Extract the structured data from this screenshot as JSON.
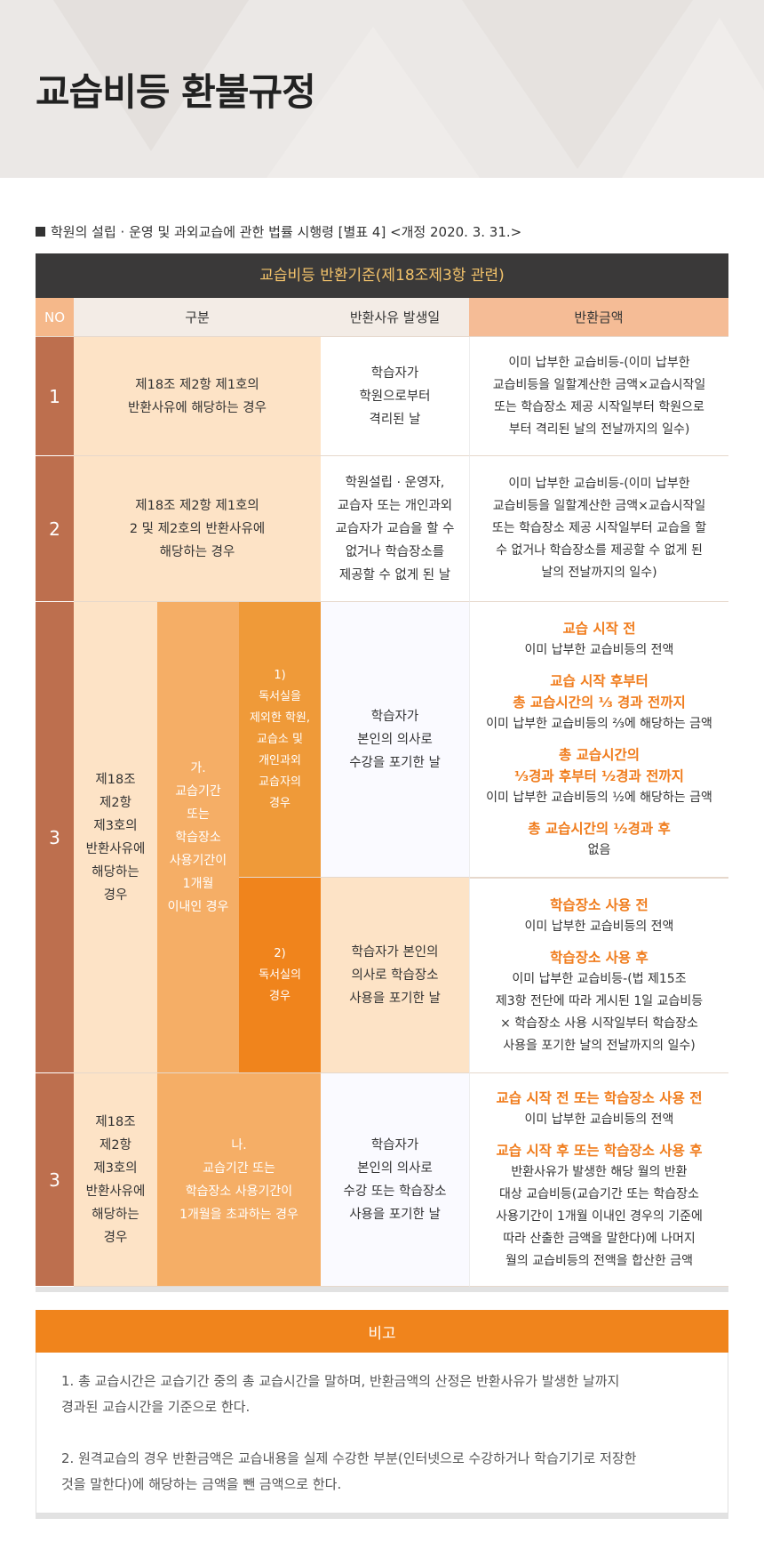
{
  "page_title": "교습비등 환불규정",
  "law_reference": "학원의 설립 · 운영 및 과외교습에 관한 법률 시행령 [별표 4] <개정 2020. 3. 31.>",
  "table": {
    "title": "교습비등 반환기준(제18조제3항 관련)",
    "headers": {
      "no": "NO",
      "category": "구분",
      "occurrence": "반환사유 발생일",
      "amount": "반환금액"
    },
    "rows": [
      {
        "no": "1",
        "category": [
          "제18조 제2항 제1호의",
          "반환사유에 해당하는 경우"
        ],
        "occurrence": [
          "학습자가",
          "학원으로부터",
          "격리된 날"
        ],
        "amount": [
          "이미 납부한 교습비등-(이미 납부한",
          "교습비등을 일할계산한 금액×교습시작일",
          "또는 학습장소 제공 시작일부터 학원으로",
          "부터 격리된 날의 전날까지의 일수)"
        ]
      },
      {
        "no": "2",
        "category": [
          "제18조 제2항 제1호의",
          "2 및 제2호의 반환사유에",
          "해당하는 경우"
        ],
        "occurrence": [
          "학원설립 · 운영자,",
          "교습자 또는 개인과외",
          "교습자가 교습을 할 수",
          "없거나 학습장소를",
          "제공할 수 없게 된 날"
        ],
        "amount": [
          "이미 납부한 교습비등-(이미 납부한",
          "교습비등을 일할계산한 금액×교습시작일",
          "또는 학습장소 제공 시작일부터 교습을 할",
          "수 없거나 학습장소를 제공할 수 없게 된",
          "날의 전날까지의 일수)"
        ]
      },
      {
        "no": "3",
        "category": [
          "제18조",
          "제2항",
          "제3호의",
          "반환사유에",
          "해당하는",
          "경우"
        ],
        "sub_ga": [
          "가.",
          "교습기간",
          "또는",
          "학습장소",
          "사용기간이",
          "1개월",
          "이내인 경우"
        ],
        "sub1": [
          "1)",
          "독서실을",
          "제외한 학원,",
          "교습소 및",
          "개인과외",
          "교습자의",
          "경우"
        ],
        "sub1_occurrence": [
          "학습자가",
          "본인의 의사로",
          "수강을 포기한 날"
        ],
        "sub1_amount": [
          {
            "label": "교습 시작 전",
            "text": [
              "이미 납부한 교습비등의 전액"
            ]
          },
          {
            "label": "교습 시작 후부터\n총 교습시간의 ⅓ 경과 전까지",
            "text": [
              "이미 납부한 교습비등의 ⅔에 해당하는 금액"
            ]
          },
          {
            "label": "총 교습시간의\n⅓경과 후부터 ½경과 전까지",
            "text": [
              "이미 납부한 교습비등의 ½에 해당하는 금액"
            ]
          },
          {
            "label": "총 교습시간의 ½경과 후",
            "text": [
              "없음"
            ]
          }
        ],
        "sub2": [
          "2)",
          "독서실의",
          "경우"
        ],
        "sub2_occurrence": [
          "학습자가 본인의",
          "의사로 학습장소",
          "사용을 포기한 날"
        ],
        "sub2_amount": [
          {
            "label": "학습장소 사용 전",
            "text": [
              "이미 납부한 교습비등의 전액"
            ]
          },
          {
            "label": "학습장소 사용 후",
            "text": [
              "이미 납부한 교습비등-(법 제15조",
              "제3항 전단에 따라 게시된 1일 교습비등",
              "× 학습장소 사용 시작일부터 학습장소",
              "사용을 포기한 날의 전날까지의 일수)"
            ]
          }
        ]
      },
      {
        "no": "3",
        "category": [
          "제18조",
          "제2항",
          "제3호의",
          "반환사유에",
          "해당하는",
          "경우"
        ],
        "sub_na": [
          "나.",
          "교습기간 또는",
          "학습장소 사용기간이",
          "1개월을 초과하는 경우"
        ],
        "occurrence": [
          "학습자가",
          "본인의 의사로",
          "수강 또는 학습장소",
          "사용을 포기한 날"
        ],
        "amount": [
          {
            "label": "교습 시작 전 또는 학습장소 사용 전",
            "text": [
              "이미 납부한 교습비등의 전액"
            ]
          },
          {
            "label": "교습 시작 후 또는 학습장소 사용 후",
            "text": [
              "반환사유가 발생한 해당 월의 반환",
              "대상 교습비등(교습기간 또는 학습장소",
              "사용기간이 1개월 이내인 경우의 기준에",
              "따라 산출한 금액을 말한다)에 나머지",
              "월의 교습비등의 전액을 합산한 금액"
            ]
          }
        ]
      }
    ]
  },
  "note": {
    "title": "비고",
    "items": [
      [
        "1. 총 교습시간은 교습기간 중의 총 교습시간을 말하며, 반환금액의 산정은 반환사유가 발생한 날까지",
        "경과된 교습시간을 기준으로 한다."
      ],
      [
        "2. 원격교습의 경우 반환금액은 교습내용을 실제 수강한 부분(인터넷으로 수강하거나 학습기기로 저장한",
        "것을 말한다)에 해당하는 금액을 뺀 금액으로 한다."
      ]
    ]
  },
  "colors": {
    "dark_header": "#3a3939",
    "accent_orange": "#f0841c",
    "no_column": "#bd6f4e",
    "light_peach": "#fde3c6"
  }
}
